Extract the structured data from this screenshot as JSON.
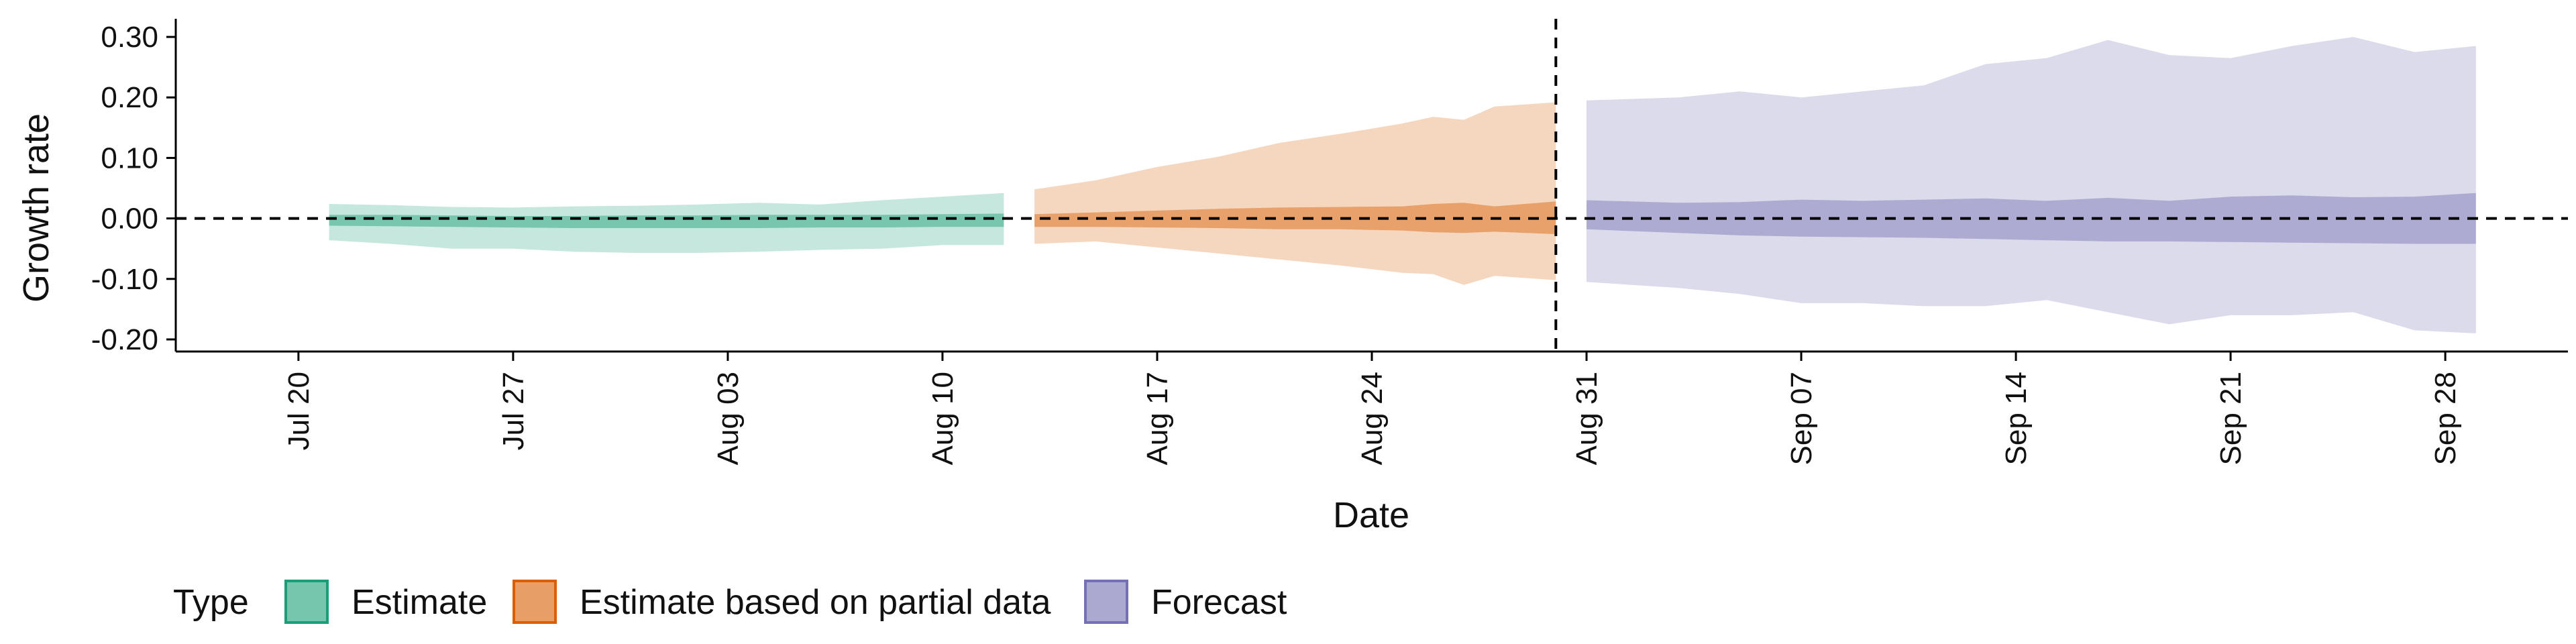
{
  "chart_data": {
    "type": "area",
    "ylabel": "Growth rate",
    "xlabel": "Date",
    "y_range": [
      -0.22,
      0.33
    ],
    "y_ticks": [
      -0.2,
      -0.1,
      0.0,
      0.1,
      0.2,
      0.3
    ],
    "y_tick_labels": [
      "-0.20",
      "-0.10",
      "0.00",
      "0.10",
      "0.20",
      "0.30"
    ],
    "x_range": [
      "2021-07-16",
      "2021-10-02"
    ],
    "x_ticks": [
      "2021-07-20",
      "2021-07-27",
      "2021-08-03",
      "2021-08-10",
      "2021-08-17",
      "2021-08-24",
      "2021-08-31",
      "2021-09-07",
      "2021-09-14",
      "2021-09-21",
      "2021-09-28"
    ],
    "x_tick_labels": [
      "Jul 20",
      "Jul 27",
      "Aug 03",
      "Aug 10",
      "Aug 17",
      "Aug 24",
      "Aug 31",
      "Sep 07",
      "Sep 14",
      "Sep 21",
      "Sep 28"
    ],
    "reference_lines": {
      "horizontal_y": 0.0,
      "vertical_date": "2021-08-30"
    },
    "legend": {
      "title": "Type",
      "position": "bottom",
      "entries": [
        "Estimate",
        "Estimate based on partial data",
        "Forecast"
      ]
    },
    "series": [
      {
        "name": "Estimate",
        "color": "#1b9e77",
        "dates": [
          "2021-07-21",
          "2021-07-23",
          "2021-07-25",
          "2021-07-27",
          "2021-07-29",
          "2021-07-31",
          "2021-08-02",
          "2021-08-04",
          "2021-08-06",
          "2021-08-08",
          "2021-08-10",
          "2021-08-12"
        ],
        "outer_upper": [
          0.024,
          0.022,
          0.019,
          0.018,
          0.02,
          0.021,
          0.023,
          0.026,
          0.023,
          0.03,
          0.036,
          0.042
        ],
        "outer_lower": [
          -0.036,
          -0.042,
          -0.05,
          -0.05,
          -0.055,
          -0.057,
          -0.057,
          -0.055,
          -0.052,
          -0.05,
          -0.044,
          -0.044
        ],
        "inner_upper": [
          0.006,
          0.006,
          0.005,
          0.004,
          0.004,
          0.005,
          0.005,
          0.006,
          0.006,
          0.006,
          0.007,
          0.008
        ],
        "inner_lower": [
          -0.012,
          -0.013,
          -0.014,
          -0.015,
          -0.016,
          -0.016,
          -0.016,
          -0.016,
          -0.015,
          -0.015,
          -0.014,
          -0.014
        ]
      },
      {
        "name": "Estimate based on partial data",
        "color": "#d95f02",
        "dates": [
          "2021-08-13",
          "2021-08-15",
          "2021-08-17",
          "2021-08-19",
          "2021-08-21",
          "2021-08-23",
          "2021-08-25",
          "2021-08-26",
          "2021-08-27",
          "2021-08-28",
          "2021-08-30"
        ],
        "outer_upper": [
          0.048,
          0.063,
          0.085,
          0.102,
          0.125,
          0.14,
          0.157,
          0.168,
          0.163,
          0.185,
          0.192
        ],
        "outer_lower": [
          -0.042,
          -0.038,
          -0.048,
          -0.058,
          -0.068,
          -0.078,
          -0.09,
          -0.092,
          -0.11,
          -0.095,
          -0.102
        ],
        "inner_upper": [
          0.007,
          0.01,
          0.013,
          0.016,
          0.018,
          0.019,
          0.02,
          0.024,
          0.026,
          0.02,
          0.028
        ],
        "inner_lower": [
          -0.014,
          -0.014,
          -0.015,
          -0.016,
          -0.018,
          -0.018,
          -0.02,
          -0.023,
          -0.024,
          -0.022,
          -0.026
        ]
      },
      {
        "name": "Forecast",
        "color": "#7570b3",
        "dates": [
          "2021-08-31",
          "2021-09-03",
          "2021-09-05",
          "2021-09-07",
          "2021-09-09",
          "2021-09-11",
          "2021-09-13",
          "2021-09-15",
          "2021-09-17",
          "2021-09-19",
          "2021-09-21",
          "2021-09-23",
          "2021-09-25",
          "2021-09-27",
          "2021-09-29"
        ],
        "outer_upper": [
          0.195,
          0.2,
          0.21,
          0.2,
          0.21,
          0.22,
          0.255,
          0.265,
          0.295,
          0.27,
          0.265,
          0.285,
          0.3,
          0.275,
          0.285
        ],
        "outer_lower": [
          -0.105,
          -0.115,
          -0.125,
          -0.14,
          -0.14,
          -0.145,
          -0.145,
          -0.135,
          -0.155,
          -0.175,
          -0.16,
          -0.16,
          -0.155,
          -0.185,
          -0.19
        ],
        "inner_upper": [
          0.03,
          0.026,
          0.027,
          0.031,
          0.029,
          0.031,
          0.033,
          0.029,
          0.034,
          0.029,
          0.036,
          0.038,
          0.035,
          0.036,
          0.042
        ],
        "inner_lower": [
          -0.018,
          -0.024,
          -0.028,
          -0.03,
          -0.031,
          -0.032,
          -0.034,
          -0.036,
          -0.038,
          -0.038,
          -0.039,
          -0.04,
          -0.041,
          -0.042,
          -0.042
        ]
      }
    ]
  }
}
